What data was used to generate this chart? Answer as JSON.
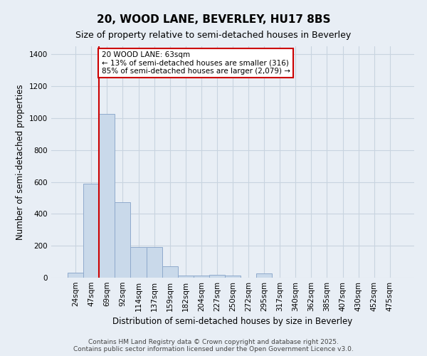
{
  "title": "20, WOOD LANE, BEVERLEY, HU17 8BS",
  "subtitle": "Size of property relative to semi-detached houses in Beverley",
  "xlabel": "Distribution of semi-detached houses by size in Beverley",
  "ylabel": "Number of semi-detached properties",
  "categories": [
    "24sqm",
    "47sqm",
    "69sqm",
    "92sqm",
    "114sqm",
    "137sqm",
    "159sqm",
    "182sqm",
    "204sqm",
    "227sqm",
    "250sqm",
    "272sqm",
    "295sqm",
    "317sqm",
    "340sqm",
    "362sqm",
    "385sqm",
    "407sqm",
    "430sqm",
    "452sqm",
    "475sqm"
  ],
  "values": [
    30,
    590,
    1025,
    475,
    190,
    190,
    70,
    15,
    15,
    20,
    15,
    0,
    25,
    0,
    0,
    0,
    0,
    0,
    0,
    0,
    0
  ],
  "bar_color": "#c9d9ea",
  "bar_edge_color": "#8faacc",
  "vline_pos": 1.5,
  "vline_color": "#cc0000",
  "annotation_text": "20 WOOD LANE: 63sqm\n← 13% of semi-detached houses are smaller (316)\n85% of semi-detached houses are larger (2,079) →",
  "annotation_box_facecolor": "#ffffff",
  "annotation_box_edgecolor": "#cc0000",
  "ylim": [
    0,
    1450
  ],
  "yticks": [
    0,
    200,
    400,
    600,
    800,
    1000,
    1200,
    1400
  ],
  "bg_color": "#e8eef5",
  "grid_color": "#c8d4e0",
  "footer_line1": "Contains HM Land Registry data © Crown copyright and database right 2025.",
  "footer_line2": "Contains public sector information licensed under the Open Government Licence v3.0.",
  "title_fontsize": 11,
  "subtitle_fontsize": 9,
  "axis_label_fontsize": 8.5,
  "tick_fontsize": 7.5,
  "annotation_fontsize": 7.5,
  "footer_fontsize": 6.5
}
